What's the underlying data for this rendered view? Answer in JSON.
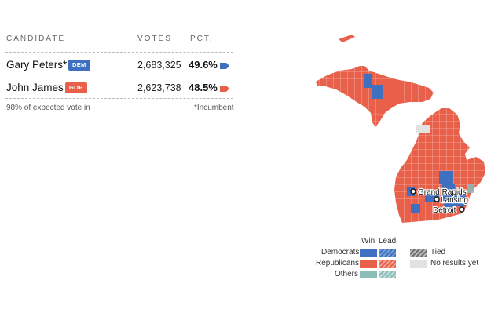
{
  "results": {
    "headers": {
      "candidate": "CANDIDATE",
      "votes": "VOTES",
      "pct": "PCT."
    },
    "rows": [
      {
        "name": "Gary Peters*",
        "party": "DEM",
        "votes": "2,683,325",
        "pct": "49.6%",
        "color": "#3f6fbf"
      },
      {
        "name": "John James",
        "party": "GOP",
        "votes": "2,623,738",
        "pct": "48.5%",
        "color": "#e8604a"
      }
    ],
    "footnote_left": "98% of expected vote in",
    "footnote_right": "*Incumbent"
  },
  "map": {
    "colors": {
      "dem": "#3f6fbf",
      "gop": "#e8604a",
      "other": "#8cbcb8",
      "tied": "#8a8a8a",
      "none": "#e2e2e2"
    },
    "cities": {
      "grand_rapids": "Grand Rapids",
      "lansing": "Lansing",
      "detroit": "Detroit"
    }
  },
  "legend": {
    "win": "Win",
    "lead": "Lead",
    "democrats": "Democrats",
    "republicans": "Republicans",
    "others": "Others",
    "tied": "Tied",
    "no_results": "No results yet"
  }
}
